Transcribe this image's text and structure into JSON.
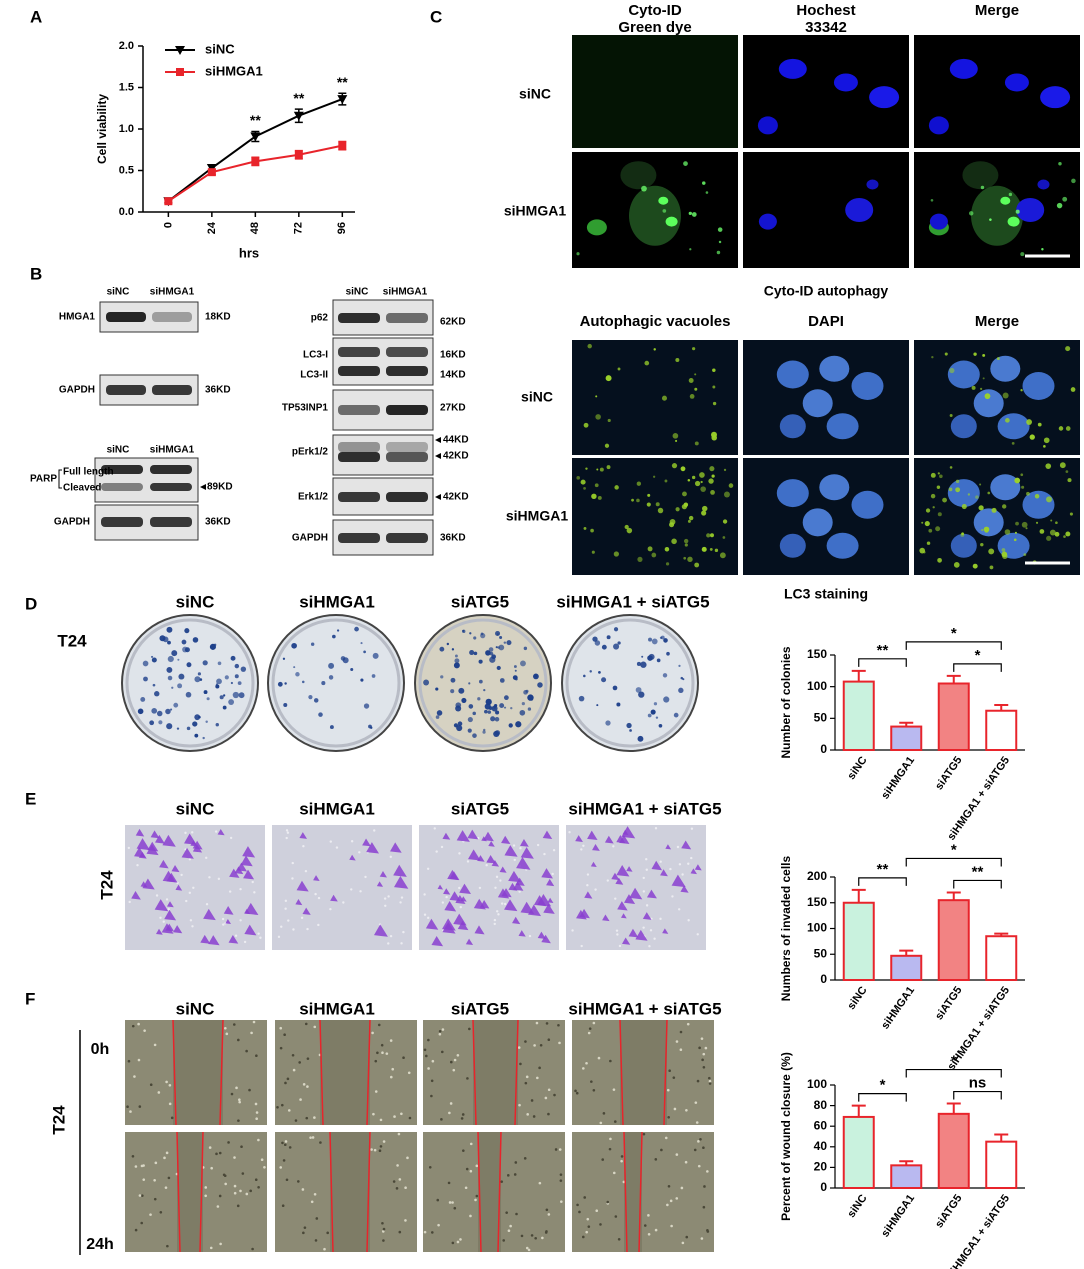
{
  "panel_labels": [
    "A",
    "B",
    "C",
    "D",
    "E",
    "F"
  ],
  "chart_data": [
    {
      "type": "line",
      "xlabel": "hrs",
      "ylabel": "Cell viability",
      "x": [
        0,
        24,
        48,
        72,
        96
      ],
      "xlim": [
        -14,
        103
      ],
      "xticks": [
        0,
        24,
        48,
        72,
        96
      ],
      "ylim": [
        0,
        2
      ],
      "yticks": [
        {
          "value": 0,
          "label": "0.0"
        },
        0.5,
        {
          "value": 1,
          "label": "1.0"
        },
        1.5,
        {
          "value": 2,
          "label": "2.0"
        }
      ],
      "legend": "upper left",
      "significance": [
        null,
        null,
        "**",
        "**",
        "**"
      ],
      "series": [
        {
          "name": "siNC",
          "color": "#000000",
          "marker": "triangle-down",
          "values": [
            0.13,
            0.53,
            0.91,
            1.16,
            1.36
          ],
          "errors": [
            0.02,
            0.04,
            0.06,
            0.08,
            0.07
          ]
        },
        {
          "name": "siHMGA1",
          "color": "#e8242b",
          "marker": "square",
          "values": [
            0.13,
            0.48,
            0.61,
            0.69,
            0.8
          ],
          "errors": [
            0.02,
            0.03,
            0.05,
            0.05,
            0.05
          ]
        }
      ]
    },
    {
      "type": "bar",
      "ylabel": "Number of colonies",
      "categories": [
        "siNC",
        "siHMGA1",
        "siATG5",
        "siHMGA1 + siATG5"
      ],
      "values": [
        108,
        37,
        105,
        62
      ],
      "errors": [
        17,
        6,
        12,
        9
      ],
      "colors": [
        "#c9f2de",
        "#b9b9f0",
        "#f28383",
        "#ffffff"
      ],
      "edge_color": "#e8242b",
      "ylim": [
        0,
        150
      ],
      "yticks": [
        0,
        50,
        100,
        150
      ],
      "brackets": [
        {
          "from": 0,
          "to": 1,
          "label": "**"
        },
        {
          "from": 1,
          "to": 3,
          "label": "*"
        },
        {
          "from": 2,
          "to": 3,
          "label": "*"
        }
      ]
    },
    {
      "type": "bar",
      "ylabel": "Numbers of invaded cells",
      "categories": [
        "siNC",
        "siHMGA1",
        "siATG5",
        "siHMGA1 + siATG5"
      ],
      "values": [
        150,
        47,
        155,
        85
      ],
      "errors": [
        25,
        10,
        15,
        5
      ],
      "colors": [
        "#c9f2de",
        "#b9b9f0",
        "#f28383",
        "#ffffff"
      ],
      "edge_color": "#e8242b",
      "ylim": [
        0,
        200
      ],
      "yticks": [
        0,
        50,
        100,
        150,
        200
      ],
      "brackets": [
        {
          "from": 0,
          "to": 1,
          "label": "**"
        },
        {
          "from": 1,
          "to": 3,
          "label": "*"
        },
        {
          "from": 2,
          "to": 3,
          "label": "**"
        }
      ]
    },
    {
      "type": "bar",
      "ylabel": "Percent of wound closure (%)",
      "categories": [
        "siNC",
        "siHMGA1",
        "siATG5",
        "siHMGA1 + siATG5"
      ],
      "values": [
        69,
        22,
        72,
        45
      ],
      "errors": [
        11,
        4,
        10,
        7
      ],
      "colors": [
        "#c9f2de",
        "#b9b9f0",
        "#f28383",
        "#ffffff"
      ],
      "edge_color": "#e8242b",
      "ylim": [
        0,
        100
      ],
      "yticks": [
        0,
        20,
        40,
        60,
        80,
        100
      ],
      "brackets": [
        {
          "from": 0,
          "to": 1,
          "label": "*"
        },
        {
          "from": 1,
          "to": 3,
          "label": "*"
        },
        {
          "from": 2,
          "to": 3,
          "label": "ns"
        }
      ]
    }
  ],
  "western_blot": {
    "left_top": {
      "lanes": [
        "siNC",
        "siHMGA1"
      ],
      "rows": [
        {
          "labels": [
            "HMGA1"
          ],
          "sizes": [
            "18KD"
          ]
        },
        {
          "labels": [
            "GAPDH"
          ],
          "sizes": [
            "36KD"
          ]
        }
      ]
    },
    "left_bottom": {
      "lanes": [
        "siNC",
        "siHMGA1"
      ],
      "parp": {
        "label": "PARP",
        "bands": [
          "Full length",
          "Cleaved"
        ],
        "size": "89KD"
      },
      "rows": [
        {
          "labels": [
            "GAPDH"
          ],
          "sizes": [
            "36KD"
          ]
        }
      ]
    },
    "right": {
      "lanes": [
        "siNC",
        "siHMGA1"
      ],
      "rows": [
        {
          "labels": [
            "p62"
          ],
          "sizes": [
            "62KD"
          ]
        },
        {
          "labels": [
            "LC3-I",
            "LC3-II"
          ],
          "sizes": [
            "16KD",
            "14KD"
          ]
        },
        {
          "labels": [
            "TP53INP1"
          ],
          "sizes": [
            "27KD"
          ]
        },
        {
          "labels": [
            "pErk1/2"
          ],
          "sizes": [
            "44KD",
            "42KD"
          ]
        },
        {
          "labels": [
            "Erk1/2"
          ],
          "sizes": [
            "42KD"
          ]
        },
        {
          "labels": [
            "GAPDH"
          ],
          "sizes": [
            "36KD"
          ]
        }
      ]
    }
  },
  "cyto_id": {
    "columns": [
      "Cyto-ID Green dye",
      "Hochest 33342",
      "Merge"
    ],
    "rows": [
      "siNC",
      "siHMGA1"
    ],
    "caption": "Cyto-ID autophagy"
  },
  "lc3": {
    "columns": [
      "Autophagic vacuoles",
      "DAPI",
      "Merge"
    ],
    "rows": [
      "siNC",
      "siHMGA1"
    ],
    "caption": "LC3 staining"
  },
  "colony_formation": {
    "cell_line": "T24",
    "conditions": [
      "siNC",
      "siHMGA1",
      "siATG5",
      "siHMGA1 + siATG5"
    ]
  },
  "transwell": {
    "cell_line": "T24",
    "conditions": [
      "siNC",
      "siHMGA1",
      "siATG5",
      "siHMGA1 + siATG5"
    ]
  },
  "wound_healing": {
    "cell_line": "T24",
    "conditions": [
      "siNC",
      "siHMGA1",
      "siATG5",
      "siHMGA1 + siATG5"
    ],
    "times": [
      "0h",
      "24h"
    ]
  }
}
